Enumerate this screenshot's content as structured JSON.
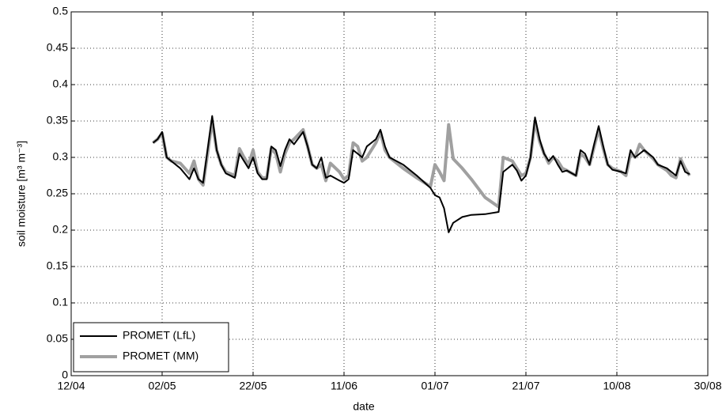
{
  "chart_data": {
    "type": "line",
    "x_label": "date",
    "y_label": "soil moisture [m³ m⁻³]",
    "x": [
      "30/04",
      "01/05",
      "02/05",
      "03/05",
      "04/05",
      "06/05",
      "08/05",
      "09/05",
      "10/05",
      "11/05",
      "13/05",
      "14/05",
      "15/05",
      "16/05",
      "18/05",
      "19/05",
      "20/05",
      "21/05",
      "22/05",
      "23/05",
      "24/05",
      "25/05",
      "26/05",
      "27/05",
      "28/05",
      "29/05",
      "30/05",
      "31/05",
      "02/06",
      "03/06",
      "04/06",
      "05/06",
      "06/06",
      "07/06",
      "08/06",
      "10/06",
      "11/06",
      "12/06",
      "13/06",
      "14/06",
      "15/06",
      "16/06",
      "18/06",
      "19/06",
      "20/06",
      "21/06",
      "24/06",
      "27/06",
      "30/06",
      "01/07",
      "02/07",
      "03/07",
      "04/07",
      "05/07",
      "07/07",
      "09/07",
      "12/07",
      "15/07",
      "16/07",
      "18/07",
      "19/07",
      "20/07",
      "21/07",
      "22/07",
      "23/07",
      "24/07",
      "25/07",
      "26/07",
      "27/07",
      "28/07",
      "29/07",
      "30/07",
      "01/08",
      "02/08",
      "03/08",
      "04/08",
      "05/08",
      "06/08",
      "07/08",
      "08/08",
      "09/08",
      "11/08",
      "12/08",
      "13/08",
      "14/08",
      "15/08",
      "16/08",
      "18/08",
      "19/08",
      "21/08",
      "22/08",
      "23/08",
      "24/08",
      "25/08",
      "26/08"
    ],
    "series": [
      {
        "name": "PROMET (LfL)",
        "color": "#000000",
        "width": 2,
        "values": [
          0.32,
          0.325,
          0.335,
          0.3,
          0.295,
          0.285,
          0.27,
          0.285,
          0.27,
          0.265,
          0.357,
          0.31,
          0.29,
          0.278,
          0.272,
          0.305,
          0.295,
          0.285,
          0.3,
          0.278,
          0.27,
          0.27,
          0.315,
          0.31,
          0.288,
          0.31,
          0.325,
          0.318,
          0.335,
          0.315,
          0.29,
          0.285,
          0.3,
          0.272,
          0.275,
          0.268,
          0.265,
          0.27,
          0.31,
          0.305,
          0.3,
          0.315,
          0.325,
          0.338,
          0.315,
          0.3,
          0.29,
          0.275,
          0.258,
          0.248,
          0.245,
          0.23,
          0.197,
          0.21,
          0.218,
          0.221,
          0.222,
          0.225,
          0.28,
          0.29,
          0.282,
          0.268,
          0.275,
          0.3,
          0.355,
          0.325,
          0.305,
          0.295,
          0.302,
          0.29,
          0.28,
          0.282,
          0.275,
          0.31,
          0.305,
          0.29,
          0.318,
          0.343,
          0.315,
          0.29,
          0.283,
          0.28,
          0.278,
          0.31,
          0.3,
          0.305,
          0.31,
          0.3,
          0.29,
          0.285,
          0.28,
          0.275,
          0.295,
          0.28,
          0.277
        ]
      },
      {
        "name": "PROMET (MM)",
        "color": "#a0a0a0",
        "width": 4,
        "values": [
          0.32,
          0.325,
          0.333,
          0.3,
          0.295,
          0.292,
          0.278,
          0.295,
          0.27,
          0.262,
          0.35,
          0.31,
          0.29,
          0.28,
          0.275,
          0.312,
          0.3,
          0.29,
          0.31,
          0.28,
          0.272,
          0.272,
          0.312,
          0.305,
          0.28,
          0.305,
          0.32,
          0.325,
          0.338,
          0.315,
          0.29,
          0.285,
          0.29,
          0.268,
          0.292,
          0.28,
          0.27,
          0.275,
          0.32,
          0.315,
          0.295,
          0.3,
          0.32,
          0.335,
          0.31,
          0.3,
          0.285,
          0.272,
          0.26,
          0.29,
          0.28,
          0.268,
          0.345,
          0.298,
          0.285,
          0.27,
          0.245,
          0.232,
          0.3,
          0.295,
          0.285,
          0.275,
          0.278,
          0.3,
          0.35,
          0.322,
          0.305,
          0.292,
          0.3,
          0.295,
          0.285,
          0.282,
          0.275,
          0.305,
          0.3,
          0.29,
          0.315,
          0.338,
          0.312,
          0.29,
          0.285,
          0.28,
          0.275,
          0.305,
          0.3,
          0.318,
          0.31,
          0.298,
          0.29,
          0.282,
          0.275,
          0.272,
          0.298,
          0.285,
          0.275
        ]
      }
    ],
    "xlim": [
      "12/04",
      "30/08"
    ],
    "xticks": [
      "12/04",
      "02/05",
      "22/05",
      "11/06",
      "01/07",
      "21/07",
      "10/08",
      "30/08"
    ],
    "ylim": [
      0,
      0.5
    ],
    "yticks": [
      0,
      0.05,
      0.1,
      0.15,
      0.2,
      0.25,
      0.3,
      0.35,
      0.4,
      0.45,
      0.5
    ],
    "grid": true,
    "legend": "lower left"
  }
}
